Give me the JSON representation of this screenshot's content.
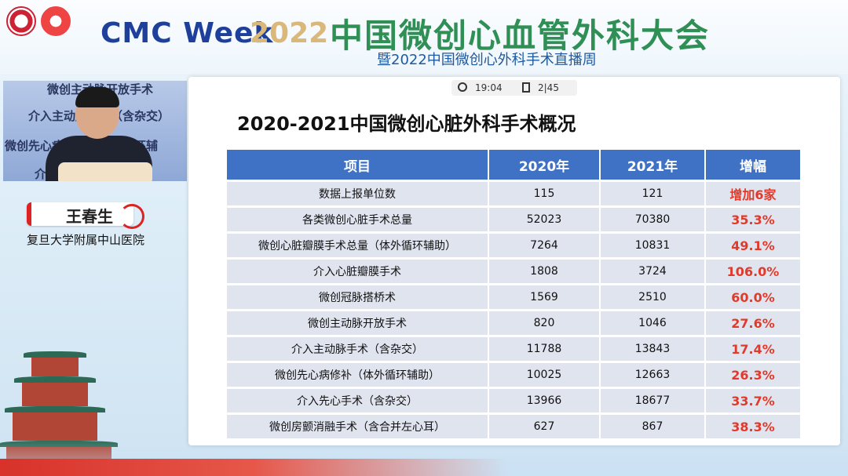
{
  "header": {
    "brand": "CMC Week",
    "year": "2022",
    "title": "中国微创心血管外科大会",
    "subtitle": "暨2022中国微创心外科手术直播周"
  },
  "speaker": {
    "name": "王春生",
    "affiliation": "复旦大学附属中山医院",
    "backdrop_lines": [
      "微创主动脉开放手术",
      "介入主动脉手术（含杂交）",
      "微创先心病修补（体外循环辅",
      "介入先"
    ]
  },
  "player": {
    "time": "19:04",
    "page": "2|45"
  },
  "slide": {
    "title": "2020-2021中国微创心脏外科手术概况",
    "table": {
      "headers": [
        "项目",
        "2020年",
        "2021年",
        "增幅"
      ],
      "rows": [
        [
          "数据上报单位数",
          "115",
          "121",
          "增加6家"
        ],
        [
          "各类微创心脏手术总量",
          "52023",
          "70380",
          "35.3%"
        ],
        [
          "微创心脏瓣膜手术总量（体外循环辅助）",
          "7264",
          "10831",
          "49.1%"
        ],
        [
          "介入心脏瓣膜手术",
          "1808",
          "3724",
          "106.0%"
        ],
        [
          "微创冠脉搭桥术",
          "1569",
          "2510",
          "60.0%"
        ],
        [
          "微创主动脉开放手术",
          "820",
          "1046",
          "27.6%"
        ],
        [
          "介入主动脉手术（含杂交）",
          "11788",
          "13843",
          "17.4%"
        ],
        [
          "微创先心病修补（体外循环辅助）",
          "10025",
          "12663",
          "26.3%"
        ],
        [
          "介入先心手术（含杂交）",
          "13966",
          "18677",
          "33.7%"
        ],
        [
          "微创房颤消融手术（含合并左心耳）",
          "627",
          "867",
          "38.3%"
        ]
      ]
    }
  },
  "colors": {
    "header_blue": "#3f72c4",
    "row_bg": "#dfe4ef",
    "increase_red": "#e23a2a",
    "title_green": "#2f8f55"
  }
}
